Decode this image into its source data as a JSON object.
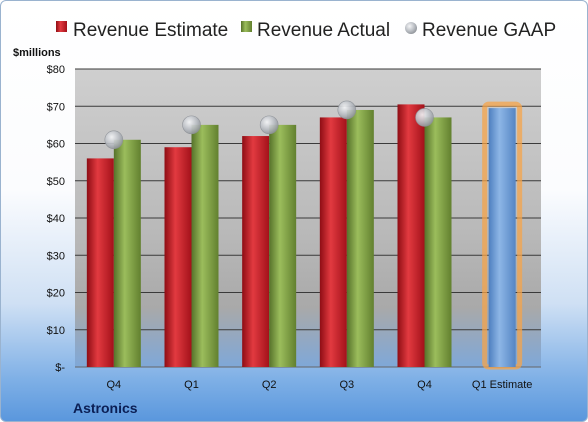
{
  "chart_data": {
    "type": "bar",
    "title": "",
    "company": "Astronics",
    "unit_label": "$millions",
    "categories": [
      "Q4",
      "Q1",
      "Q2",
      "Q3",
      "Q4",
      "Q1 Estimate"
    ],
    "y_ticks": [
      "$-",
      "$10",
      "$20",
      "$30",
      "$40",
      "$50",
      "$60",
      "$70",
      "$80"
    ],
    "ylim": [
      0,
      80
    ],
    "grid": true,
    "legend_position": "top",
    "series": [
      {
        "name": "Revenue Estimate",
        "kind": "bar",
        "color": "#c0141d",
        "values": [
          56,
          59,
          62,
          67,
          70.5,
          null
        ]
      },
      {
        "name": "Revenue Actual",
        "kind": "bar",
        "color": "#76983a",
        "values": [
          61,
          65,
          65,
          69,
          67,
          null
        ]
      },
      {
        "name": "Revenue GAAP",
        "kind": "marker",
        "color": "#b8bcc2",
        "values": [
          61,
          65,
          65,
          69,
          67,
          null
        ]
      },
      {
        "name": "Q1 Estimate",
        "kind": "bar",
        "color": "#6b9bd3",
        "highlight": "#f5a44a",
        "values": [
          null,
          null,
          null,
          null,
          null,
          69.5
        ]
      }
    ]
  }
}
